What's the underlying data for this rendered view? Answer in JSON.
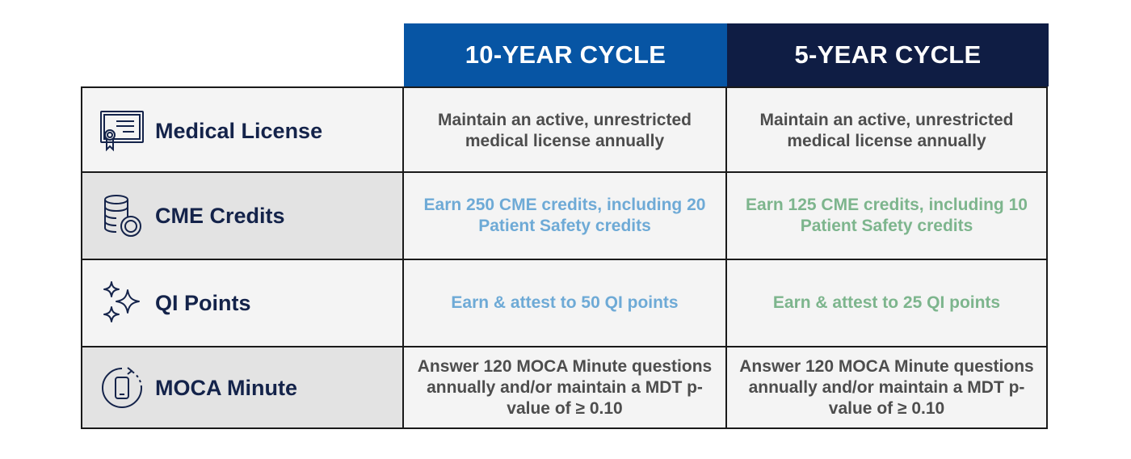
{
  "headers": {
    "ten_year": "10-YEAR CYCLE",
    "five_year": "5-YEAR CYCLE"
  },
  "colors": {
    "ten_year_header": "#0755a4",
    "five_year_header": "#0f1d44",
    "label_text": "#14234a",
    "neutral_text": "#4d4d4d",
    "ten_year_accent": "#6eaad6",
    "five_year_accent": "#7db58d"
  },
  "rows": [
    {
      "icon": "certificate-icon",
      "label": "Medical License",
      "ten_year": "Maintain an active, unrestricted medical license annually",
      "five_year": "Maintain an active, unrestricted medical license annually"
    },
    {
      "icon": "coins-icon",
      "label": "CME Credits",
      "ten_year": "Earn 250 CME credits, including 20 Patient Safety credits",
      "five_year": "Earn 125 CME credits, including 10 Patient Safety credits"
    },
    {
      "icon": "sparkles-icon",
      "label": "QI Points",
      "ten_year": "Earn & attest to 50 QI points",
      "five_year": "Earn & attest to 25 QI points"
    },
    {
      "icon": "mobile-timer-icon",
      "label": "MOCA Minute",
      "ten_year": "Answer 120 MOCA Minute questions annually and/or maintain a MDT p-value of ≥ 0.10",
      "five_year": "Answer 120 MOCA Minute questions annually and/or maintain a MDT p-value of ≥ 0.10"
    }
  ]
}
